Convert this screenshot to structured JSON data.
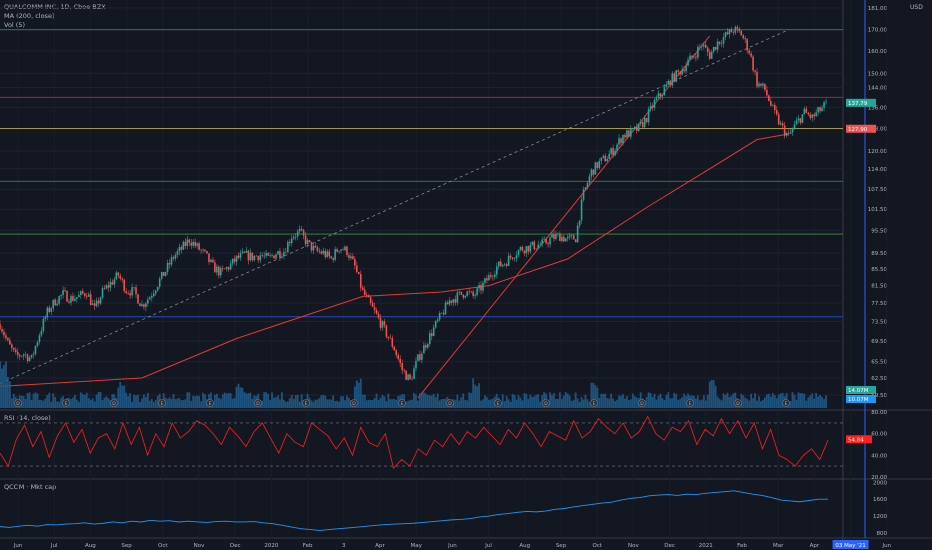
{
  "header": {
    "symbol_line": "QUALCOMM INC, 1D, Cboe BZX",
    "ma_line": "MA (200, close)",
    "vol_line": "Vol (5)",
    "currency": "USD"
  },
  "rsi_pane": {
    "title": "RSI (14, close)"
  },
  "mcap_pane": {
    "title": "QCOM · Mkt cap"
  },
  "colors": {
    "background": "#131722",
    "up_candle": "#26a69a",
    "down_candle": "#ef5350",
    "ma_line": "#e53935",
    "rsi_line": "#ff1f1f",
    "mcap_line": "#2196f3",
    "volume": "#1e5f8f",
    "cursor_line": "#2962ff"
  },
  "chart_data": [
    {
      "type": "candlestick",
      "title": "QUALCOMM INC, 1D, Cboe BZX",
      "x_ticks": [
        "Jun",
        "Jul",
        "Aug",
        "Sep",
        "Oct",
        "Nov",
        "Dec",
        "2020",
        "Feb",
        "3",
        "Apr",
        "May",
        "Jun",
        "Jul",
        "Aug",
        "Sep",
        "Oct",
        "Nov",
        "Dec",
        "2021",
        "Feb",
        "Mar",
        "Apr",
        "03 May '21",
        "Jun"
      ],
      "y_ticks": [
        59.5,
        62.5,
        65.5,
        69.5,
        73.5,
        77.5,
        81.5,
        85.5,
        89.5,
        95.5,
        101.5,
        107.5,
        114.0,
        120.0,
        128.0,
        136.0,
        144.0,
        150.0,
        160.0,
        170.0,
        181.0
      ],
      "y_scale": "log",
      "ylim": [
        57,
        182
      ],
      "price_labels": [
        {
          "value": "137.79",
          "color": "#26a69a"
        },
        {
          "value": "127.90",
          "color": "#ef5350"
        }
      ],
      "price_path_weekly": [
        73,
        69,
        66.5,
        67,
        66,
        71,
        75.5,
        78,
        79.5,
        78.5,
        79,
        80,
        76,
        80,
        82,
        84,
        80.5,
        80,
        77,
        79,
        82,
        85,
        88.5,
        90.5,
        93,
        91,
        89,
        86,
        84.5,
        86,
        88,
        89,
        88.5,
        89,
        88,
        89.5,
        90,
        94,
        95,
        92,
        90,
        89.5,
        88,
        91,
        90,
        86,
        80,
        77,
        74,
        71,
        68,
        64,
        62,
        66,
        69,
        72,
        75,
        78,
        79,
        80,
        79,
        81,
        83.5,
        86,
        87,
        89,
        90.5,
        91,
        91.5,
        92,
        93.5,
        94,
        93,
        93.5,
        106,
        113,
        116,
        118,
        121,
        125.5,
        126.5,
        128,
        132,
        138,
        142,
        147,
        150,
        154,
        158,
        163,
        158,
        164,
        167,
        170,
        168,
        160,
        146,
        143,
        135,
        129,
        125,
        130,
        134,
        132,
        135,
        137.8
      ],
      "ma200": {
        "name": "MA (200, close)",
        "points": [
          [
            0,
            61
          ],
          [
            18,
            62.5
          ],
          [
            30,
            70
          ],
          [
            46,
            79
          ],
          [
            56,
            80
          ],
          [
            62,
            81.5
          ],
          [
            72,
            88
          ],
          [
            82,
            102
          ],
          [
            90,
            114
          ],
          [
            96,
            124
          ],
          [
            100,
            126
          ]
        ]
      },
      "horizontal_levels": [
        {
          "value": 170,
          "color": "#4caf50"
        },
        {
          "value": 140,
          "color": "#e91e63"
        },
        {
          "value": 128,
          "color": "#ffeb3b"
        },
        {
          "value": 110,
          "color": "#4caf50"
        },
        {
          "value": 94.5,
          "color": "#4caf50"
        },
        {
          "value": 74.5,
          "color": "#2962ff"
        }
      ],
      "trend_lines": [
        {
          "style": "dashed",
          "from": [
            0,
            61.5
          ],
          "to": [
            100,
            170
          ]
        },
        {
          "style": "solid",
          "from": [
            53,
            59
          ],
          "to": [
            90,
            167
          ]
        }
      ],
      "volume_labels": [
        {
          "value": "14.07M",
          "color": "#26a69a"
        },
        {
          "value": "10.07M",
          "color": "#2196f3"
        }
      ],
      "event_markers": [
        "D",
        "E",
        "D",
        "E",
        "E",
        "D",
        "E",
        "D",
        "E",
        "D",
        "E",
        "D",
        "E",
        "D",
        "E",
        "D",
        "E"
      ]
    },
    {
      "type": "line",
      "title": "RSI (14, close)",
      "y_ticks": [
        80.0,
        60.0,
        40.0,
        20.0
      ],
      "ylim": [
        18,
        82
      ],
      "bands": [
        70,
        30
      ],
      "last_value": "54.84",
      "values_weekly": [
        42,
        30,
        55,
        68,
        48,
        62,
        38,
        58,
        70,
        52,
        64,
        42,
        56,
        60,
        46,
        70,
        50,
        66,
        40,
        60,
        48,
        70,
        56,
        62,
        72,
        68,
        60,
        50,
        66,
        58,
        48,
        62,
        70,
        56,
        42,
        60,
        52,
        48,
        70,
        64,
        58,
        46,
        56,
        40,
        66,
        52,
        48,
        60,
        28,
        36,
        30,
        46,
        40,
        54,
        48,
        60,
        50,
        62,
        56,
        66,
        58,
        50,
        64,
        56,
        70,
        60,
        48,
        62,
        58,
        54,
        72,
        56,
        62,
        74,
        66,
        60,
        70,
        56,
        62,
        76,
        60,
        54,
        66,
        62,
        72,
        50,
        64,
        58,
        74,
        60,
        72,
        56,
        70,
        46,
        64,
        40,
        36,
        30,
        40,
        46,
        36,
        54
      ]
    },
    {
      "type": "line",
      "title": "QCOM · Mkt cap",
      "y_ticks": [
        2000,
        1600,
        1200,
        800
      ],
      "ylim": [
        680,
        2080
      ],
      "values_weekly": [
        950,
        930,
        960,
        980,
        960,
        1000,
        990,
        1010,
        1020,
        1040,
        1010,
        1030,
        1060,
        1040,
        1080,
        1060,
        1100,
        1080,
        1090,
        1060,
        1080,
        1060,
        1050,
        1070,
        1080,
        1060,
        1060,
        1070,
        1040,
        1020,
        980,
        940,
        900,
        880,
        860,
        880,
        900,
        920,
        940,
        960,
        980,
        1000,
        1010,
        1020,
        1030,
        1050,
        1070,
        1090,
        1110,
        1120,
        1140,
        1180,
        1200,
        1240,
        1260,
        1290,
        1310,
        1300,
        1320,
        1360,
        1380,
        1420,
        1450,
        1480,
        1510,
        1530,
        1580,
        1620,
        1640,
        1680,
        1700,
        1710,
        1690,
        1720,
        1710,
        1740,
        1760,
        1780,
        1800,
        1760,
        1720,
        1690,
        1640,
        1580,
        1560,
        1540,
        1570,
        1600,
        1600
      ]
    }
  ]
}
